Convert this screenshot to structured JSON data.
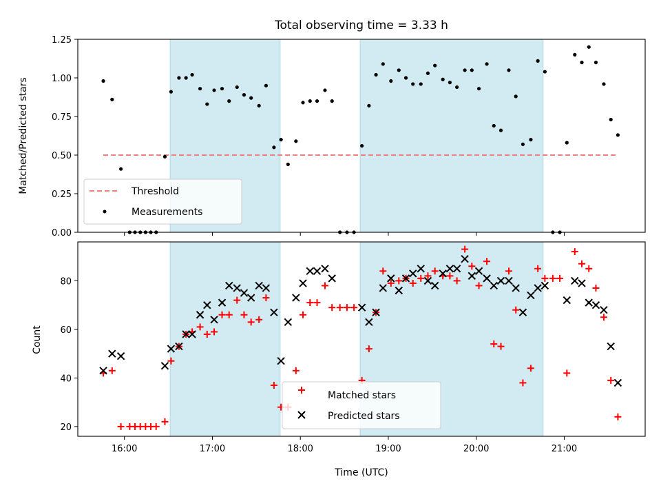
{
  "title": "Total observing time = 3.33 h",
  "chart_data": [
    {
      "type": "scatter",
      "panel": "top",
      "ylabel": "Matched/Predicted stars",
      "ylim": [
        0,
        1.25
      ],
      "yticks": [
        0.0,
        0.25,
        0.5,
        0.75,
        1.0,
        1.25
      ],
      "ytick_labels": [
        "0.00",
        "0.25",
        "0.50",
        "0.75",
        "1.00",
        "1.25"
      ],
      "threshold": 0.5,
      "threshold_range": [
        15.76,
        21.6
      ],
      "threshold_color": "#f08080",
      "marker_color": "#000000",
      "legend": [
        "Threshold",
        "Measurements"
      ],
      "legend_position": "lower-left",
      "series": [
        {
          "name": "Measurements",
          "x": [
            15.76,
            15.86,
            15.96,
            16.06,
            16.12,
            16.18,
            16.24,
            16.3,
            16.36,
            16.46,
            16.53,
            16.62,
            16.7,
            16.77,
            16.86,
            16.94,
            17.02,
            17.11,
            17.19,
            17.28,
            17.36,
            17.44,
            17.53,
            17.61,
            17.7,
            17.78,
            17.86,
            17.95,
            18.03,
            18.11,
            18.19,
            18.28,
            18.36,
            18.45,
            18.53,
            18.61,
            18.7,
            18.78,
            18.86,
            18.94,
            19.03,
            19.12,
            19.2,
            19.28,
            19.37,
            19.45,
            19.53,
            19.62,
            19.7,
            19.78,
            19.87,
            19.95,
            20.03,
            20.12,
            20.2,
            20.28,
            20.37,
            20.45,
            20.53,
            20.62,
            20.7,
            20.78,
            20.87,
            20.95,
            21.03,
            21.12,
            21.2,
            21.28,
            21.36,
            21.45,
            21.53,
            21.61
          ],
          "y": [
            0.98,
            0.86,
            0.41,
            0.0,
            0.0,
            0.0,
            0.0,
            0.0,
            0.0,
            0.49,
            0.91,
            1.0,
            1.0,
            1.02,
            0.93,
            0.83,
            0.92,
            0.93,
            0.85,
            0.94,
            0.89,
            0.87,
            0.82,
            0.95,
            0.55,
            0.6,
            0.44,
            0.59,
            0.84,
            0.85,
            0.85,
            0.92,
            0.85,
            0.0,
            0.0,
            0.0,
            0.56,
            0.82,
            1.02,
            1.09,
            0.98,
            1.05,
            1.0,
            0.96,
            0.96,
            1.03,
            1.08,
            0.99,
            0.97,
            0.94,
            1.05,
            1.05,
            0.93,
            1.09,
            0.69,
            0.66,
            1.05,
            0.88,
            0.57,
            0.6,
            1.11,
            1.04,
            0.0,
            0.0,
            0.58,
            1.15,
            1.1,
            1.2,
            1.1,
            0.96,
            0.73,
            0.63
          ]
        }
      ]
    },
    {
      "type": "scatter",
      "panel": "bottom",
      "xlabel": "Time (UTC)",
      "ylabel": "Count",
      "xlim": [
        15.47,
        21.92
      ],
      "ylim": [
        16,
        96
      ],
      "yticks": [
        20,
        40,
        60,
        80
      ],
      "xtick_labels": [
        "16:00",
        "17:00",
        "18:00",
        "19:00",
        "20:00",
        "21:00"
      ],
      "xticks": [
        16,
        17,
        18,
        19,
        20,
        21
      ],
      "legend": [
        "Matched stars",
        "Predicted stars"
      ],
      "legend_position": "lower-center",
      "series": [
        {
          "name": "Matched stars",
          "marker": "plus",
          "color": "#ff0000",
          "x": [
            15.76,
            15.86,
            15.96,
            16.06,
            16.12,
            16.18,
            16.24,
            16.3,
            16.36,
            16.46,
            16.53,
            16.62,
            16.7,
            16.77,
            16.86,
            16.94,
            17.02,
            17.11,
            17.19,
            17.28,
            17.36,
            17.44,
            17.53,
            17.61,
            17.7,
            17.78,
            17.86,
            17.95,
            18.03,
            18.11,
            18.19,
            18.28,
            18.36,
            18.45,
            18.53,
            18.61,
            18.7,
            18.78,
            18.86,
            18.94,
            19.03,
            19.12,
            19.2,
            19.28,
            19.37,
            19.45,
            19.53,
            19.62,
            19.7,
            19.78,
            19.87,
            19.95,
            20.03,
            20.12,
            20.2,
            20.28,
            20.37,
            20.45,
            20.53,
            20.62,
            20.7,
            20.78,
            20.87,
            20.95,
            21.03,
            21.12,
            21.2,
            21.28,
            21.36,
            21.45,
            21.53,
            21.61
          ],
          "y": [
            42,
            43,
            20,
            20,
            20,
            20,
            20,
            20,
            20,
            22,
            47,
            53,
            58,
            59,
            61,
            58,
            59,
            66,
            66,
            72,
            66,
            63,
            64,
            73,
            37,
            28,
            28,
            43,
            66,
            71,
            71,
            78,
            69,
            69,
            69,
            69,
            39,
            52,
            67,
            84,
            79,
            80,
            81,
            79,
            81,
            82,
            84,
            82,
            82,
            80,
            93,
            86,
            78,
            88,
            54,
            53,
            84,
            68,
            38,
            44,
            85,
            81,
            81,
            81,
            42,
            92,
            87,
            85,
            77,
            65,
            39,
            24
          ]
        },
        {
          "name": "Predicted stars",
          "marker": "x",
          "color": "#000000",
          "x": [
            15.76,
            15.86,
            15.96,
            16.46,
            16.53,
            16.62,
            16.7,
            16.77,
            16.86,
            16.94,
            17.02,
            17.11,
            17.19,
            17.28,
            17.36,
            17.44,
            17.53,
            17.61,
            17.7,
            17.78,
            17.86,
            17.95,
            18.03,
            18.11,
            18.19,
            18.28,
            18.36,
            18.7,
            18.78,
            18.86,
            18.94,
            19.03,
            19.12,
            19.2,
            19.28,
            19.37,
            19.45,
            19.53,
            19.62,
            19.7,
            19.78,
            19.87,
            19.95,
            20.03,
            20.12,
            20.2,
            20.28,
            20.37,
            20.45,
            20.53,
            20.62,
            20.7,
            20.78,
            21.03,
            21.12,
            21.2,
            21.28,
            21.36,
            21.45,
            21.53,
            21.61
          ],
          "y": [
            43,
            50,
            49,
            45,
            52,
            53,
            58,
            58,
            66,
            70,
            64,
            71,
            78,
            77,
            75,
            73,
            78,
            77,
            67,
            47,
            63,
            73,
            79,
            84,
            84,
            85,
            81,
            69,
            63,
            67,
            77,
            81,
            76,
            81,
            83,
            85,
            80,
            78,
            83,
            85,
            85,
            89,
            82,
            84,
            81,
            78,
            80,
            80,
            77,
            67,
            74,
            77,
            78,
            72,
            80,
            79,
            71,
            70,
            68,
            53,
            38
          ]
        }
      ]
    }
  ],
  "shaded_intervals": [
    [
      16.52,
      17.77
    ],
    [
      18.68,
      20.76
    ]
  ],
  "shade_color": "#add8e6"
}
